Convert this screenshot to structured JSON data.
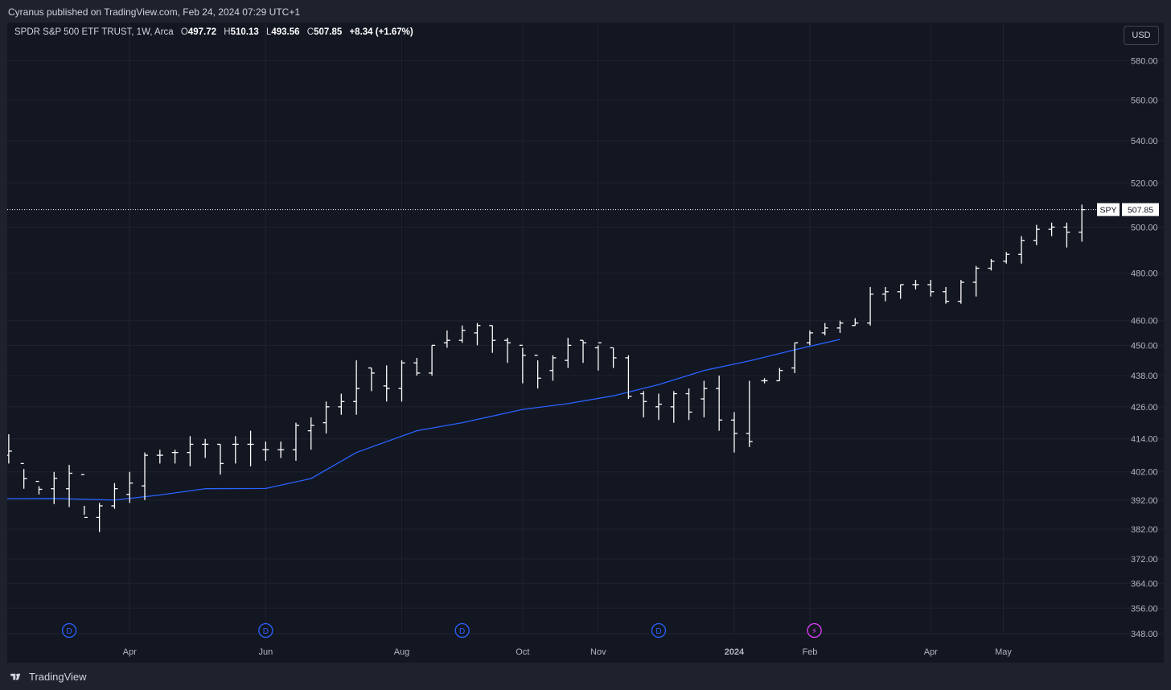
{
  "header": {
    "published_text": "Cyranus published on TradingView.com, Feb 24, 2024 07:29 UTC+1"
  },
  "legend": {
    "symbol_desc": "SPDR S&P 500 ETF TRUST, 1W, Arca",
    "open_label": "O",
    "open": "497.72",
    "high_label": "H",
    "high": "510.13",
    "low_label": "L",
    "low": "493.56",
    "close_label": "C",
    "close": "507.85",
    "change": "+8.34 (+1.67%)"
  },
  "currency_button": "USD",
  "price_tag": {
    "symbol": "SPY",
    "value": "507.85"
  },
  "footer": {
    "brand": "TradingView"
  },
  "colors": {
    "background": "#131722",
    "bars": "#ffffff",
    "ma": "#2962ff",
    "grid": "#1f2330",
    "axis_text": "#b2b5be",
    "dividend": "#2962ff",
    "split": "#e040fb"
  },
  "chart_data": {
    "type": "ohlc-bar",
    "title": "SPDR S&P 500 ETF TRUST, 1W, Arca",
    "y_scale": "log",
    "ylim": [
      348,
      600
    ],
    "y_ticks": [
      580,
      560,
      540,
      520,
      500,
      480,
      460,
      450,
      438,
      426,
      414,
      402,
      392,
      382,
      372,
      364,
      356,
      348
    ],
    "x_ticks": [
      {
        "label": "Apr",
        "week": 9
      },
      {
        "label": "Jun",
        "week": 18
      },
      {
        "label": "Aug",
        "week": 27
      },
      {
        "label": "Oct",
        "week": 35
      },
      {
        "label": "Nov",
        "week": 40
      },
      {
        "label": "2024",
        "week": 49,
        "bold": true
      },
      {
        "label": "Feb",
        "week": 54
      },
      {
        "label": "Apr",
        "week": 62
      },
      {
        "label": "May",
        "week": 66.8
      }
    ],
    "x_range": [
      0.9,
      73
    ],
    "bars": [
      [
        408.0,
        409.5,
        415.7,
        405.0
      ],
      [
        405.0,
        399.6,
        403.0,
        396.0
      ],
      [
        398.6,
        395.8,
        396.9,
        394.0
      ],
      [
        396.0,
        399.7,
        402.0,
        390.6
      ],
      [
        396.0,
        401.5,
        404.5,
        389.6
      ],
      [
        401.0,
        386.0,
        386.9,
        390.0
      ],
      [
        386.0,
        390.0,
        391.0,
        381.0
      ],
      [
        390.0,
        396.0,
        398.0,
        389.0
      ],
      [
        394.0,
        398.0,
        402.0,
        391.0
      ],
      [
        397.0,
        408.0,
        409.0,
        392.0
      ],
      [
        408.0,
        408.0,
        410.0,
        405.0
      ],
      [
        409.0,
        409.0,
        410.0,
        405.0
      ],
      [
        409.0,
        412.0,
        415.0,
        404.0
      ],
      [
        412.0,
        412.0,
        414.0,
        407.0
      ],
      [
        412.0,
        405.0,
        412.0,
        401.0
      ],
      [
        412.0,
        412.0,
        415.0,
        405.0
      ],
      [
        412.0,
        412.0,
        417.0,
        404.0
      ],
      [
        410.0,
        410.0,
        413.0,
        406.0
      ],
      [
        410.0,
        410.0,
        413.0,
        407.0
      ],
      [
        410.0,
        419.0,
        420.0,
        406.0
      ],
      [
        417.0,
        419.0,
        422.0,
        410.0
      ],
      [
        420.0,
        426.0,
        428.0,
        416.0
      ],
      [
        426.0,
        428.0,
        431.0,
        423.0
      ],
      [
        428.0,
        433.0,
        444.0,
        423.0
      ],
      [
        441.0,
        439.0,
        441.0,
        432.0
      ],
      [
        434.0,
        433.0,
        442.0,
        428.0
      ],
      [
        433.0,
        443.0,
        444.0,
        428.0
      ],
      [
        443.0,
        439.0,
        445.0,
        438.0
      ],
      [
        439.0,
        450.0,
        450.0,
        438.0
      ],
      [
        451.0,
        452.0,
        456.0,
        449.0
      ],
      [
        452.0,
        456.0,
        458.0,
        451.0
      ],
      [
        455.0,
        458.0,
        459.0,
        450.0
      ],
      [
        458.0,
        452.0,
        458.0,
        447.0
      ],
      [
        452.0,
        451.0,
        453.0,
        443.0
      ],
      [
        450.0,
        446.0,
        449.0,
        435.0
      ],
      [
        446.0,
        437.0,
        444.0,
        433.0
      ],
      [
        440.0,
        445.0,
        446.0,
        436.0
      ],
      [
        444.0,
        450.0,
        453.0,
        441.0
      ],
      [
        452.0,
        451.0,
        452.0,
        443.0
      ],
      [
        449.0,
        451.0,
        450.0,
        440.0
      ],
      [
        449.0,
        445.0,
        449.0,
        441.0
      ],
      [
        445.0,
        430.0,
        446.0,
        429.0
      ],
      [
        431.0,
        428.0,
        432.0,
        422.0
      ],
      [
        426.0,
        427.0,
        431.0,
        421.0
      ],
      [
        426.0,
        431.0,
        432.0,
        420.0
      ],
      [
        431.0,
        424.0,
        433.0,
        421.0
      ],
      [
        429.0,
        433.0,
        436.0,
        422.0
      ],
      [
        433.0,
        421.0,
        438.0,
        417.0
      ],
      [
        421.0,
        416.0,
        424.0,
        409.0
      ],
      [
        416.0,
        413.0,
        436.0,
        411.0
      ],
      [
        436.0,
        436.0,
        437.0,
        435.0
      ],
      [
        436.0,
        440.0,
        441.0,
        436.0
      ],
      [
        441.0,
        451.0,
        451.0,
        439.0
      ],
      [
        451.0,
        455.0,
        456.0,
        450.0
      ],
      [
        455.0,
        457.0,
        459.0,
        454.0
      ],
      [
        457.0,
        459.0,
        460.0,
        455.0
      ],
      [
        458.0,
        459.0,
        461.0,
        458.0
      ],
      [
        459.0,
        471.0,
        474.0,
        458.0
      ],
      [
        471.0,
        472.0,
        474.0,
        468.0
      ],
      [
        472.0,
        475.0,
        475.0,
        469.0
      ],
      [
        475.0,
        475.0,
        477.0,
        473.0
      ],
      [
        475.0,
        472.0,
        477.0,
        470.0
      ],
      [
        472.0,
        468.0,
        474.0,
        467.0
      ],
      [
        468.0,
        476.0,
        477.0,
        467.0
      ],
      [
        476.0,
        482.0,
        483.0,
        470.0
      ],
      [
        482.0,
        485.0,
        486.0,
        481.0
      ],
      [
        485.0,
        488.0,
        489.0,
        484.0
      ],
      [
        488.0,
        494.0,
        496.0,
        484.0
      ],
      [
        494.0,
        499.0,
        501.0,
        492.0
      ],
      [
        499.0,
        500.0,
        502.0,
        496.0
      ],
      [
        500.0,
        497.7,
        502.0,
        491.0
      ],
      [
        497.72,
        507.85,
        510.13,
        493.56
      ]
    ],
    "ma": {
      "name": "Moving Average",
      "x": [
        0.9,
        4,
        8,
        11,
        14,
        18,
        21,
        24,
        28,
        31,
        35,
        38,
        41,
        44,
        47,
        50,
        53,
        56
      ],
      "y": [
        392.5,
        392.6,
        392.0,
        393.8,
        396.0,
        396.1,
        399.6,
        409.0,
        417.0,
        420.0,
        425.0,
        427.2,
        430.2,
        434.5,
        440.0,
        443.8,
        448.2,
        452.4
      ]
    },
    "events": [
      {
        "type": "dividend",
        "label": "D",
        "week": 5
      },
      {
        "type": "dividend",
        "label": "D",
        "week": 18
      },
      {
        "type": "dividend",
        "label": "D",
        "week": 31
      },
      {
        "type": "dividend",
        "label": "D",
        "week": 44
      },
      {
        "type": "split",
        "label": "⚡",
        "week": 54.3
      }
    ]
  }
}
